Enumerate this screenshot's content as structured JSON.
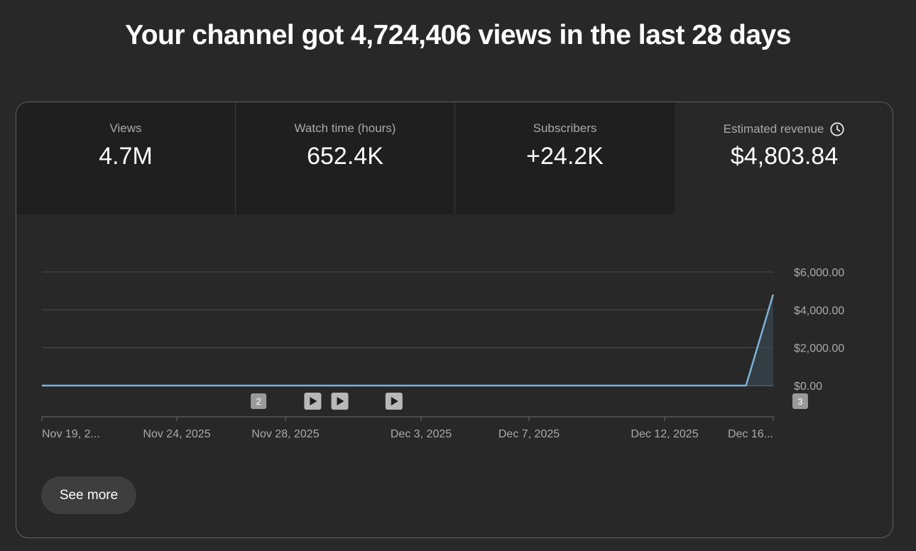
{
  "headline": "Your channel got 4,724,406 views in the last 28 days",
  "tabs": [
    {
      "label": "Views",
      "value": "4.7M",
      "selected": false
    },
    {
      "label": "Watch time (hours)",
      "value": "652.4K",
      "selected": false
    },
    {
      "label": "Subscribers",
      "value": "+24.2K",
      "selected": false
    },
    {
      "label": "Estimated revenue",
      "value": "$4,803.84",
      "selected": true,
      "icon": "clock-icon"
    }
  ],
  "see_more_label": "See more",
  "colors": {
    "background": "#282828",
    "tab_unselected": "#1f1f1f",
    "line": "#7fb3d5",
    "grid": "#4a4a4a",
    "axis_text": "#aaaaaa",
    "marker": "#aaaaaa"
  },
  "chart_data": {
    "type": "line",
    "title": "",
    "xlabel": "",
    "ylabel": "",
    "x_tick_labels": [
      "Nov 19, 2...",
      "Nov 24, 2025",
      "Nov 28, 2025",
      "Dec 3, 2025",
      "Dec 7, 2025",
      "Dec 12, 2025",
      "Dec 16..."
    ],
    "y_tick_labels": [
      "$6,000.00",
      "$4,000.00",
      "$2,000.00",
      "$0.00"
    ],
    "ylim": [
      0,
      6000
    ],
    "series": [
      {
        "x": [
          "Nov 19, 2025",
          "Nov 20, 2025",
          "Nov 21, 2025",
          "Nov 22, 2025",
          "Nov 23, 2025",
          "Nov 24, 2025",
          "Nov 25, 2025",
          "Nov 26, 2025",
          "Nov 27, 2025",
          "Nov 28, 2025",
          "Nov 29, 2025",
          "Nov 30, 2025",
          "Dec 1, 2025",
          "Dec 2, 2025",
          "Dec 3, 2025",
          "Dec 4, 2025",
          "Dec 5, 2025",
          "Dec 6, 2025",
          "Dec 7, 2025",
          "Dec 8, 2025",
          "Dec 9, 2025",
          "Dec 10, 2025",
          "Dec 11, 2025",
          "Dec 12, 2025",
          "Dec 13, 2025",
          "Dec 14, 2025",
          "Dec 15, 2025",
          "Dec 16, 2025"
        ],
        "values": [
          0,
          0,
          0,
          0,
          0,
          0,
          0,
          0,
          0,
          0,
          0,
          0,
          0,
          0,
          0,
          0,
          0,
          0,
          0,
          0,
          0,
          0,
          0,
          0,
          0,
          0,
          0,
          4803.84
        ]
      }
    ],
    "partial_period_start": "Dec 16, 2025",
    "markers": [
      {
        "kind": "count",
        "label": "2",
        "date": "Nov 27, 2025"
      },
      {
        "kind": "video",
        "label": "",
        "date": "Nov 29, 2025"
      },
      {
        "kind": "video",
        "label": "",
        "date": "Nov 30, 2025"
      },
      {
        "kind": "video",
        "label": "",
        "date": "Dec 2, 2025"
      },
      {
        "kind": "count",
        "label": "3",
        "date": "Dec 17, 2025"
      }
    ]
  }
}
